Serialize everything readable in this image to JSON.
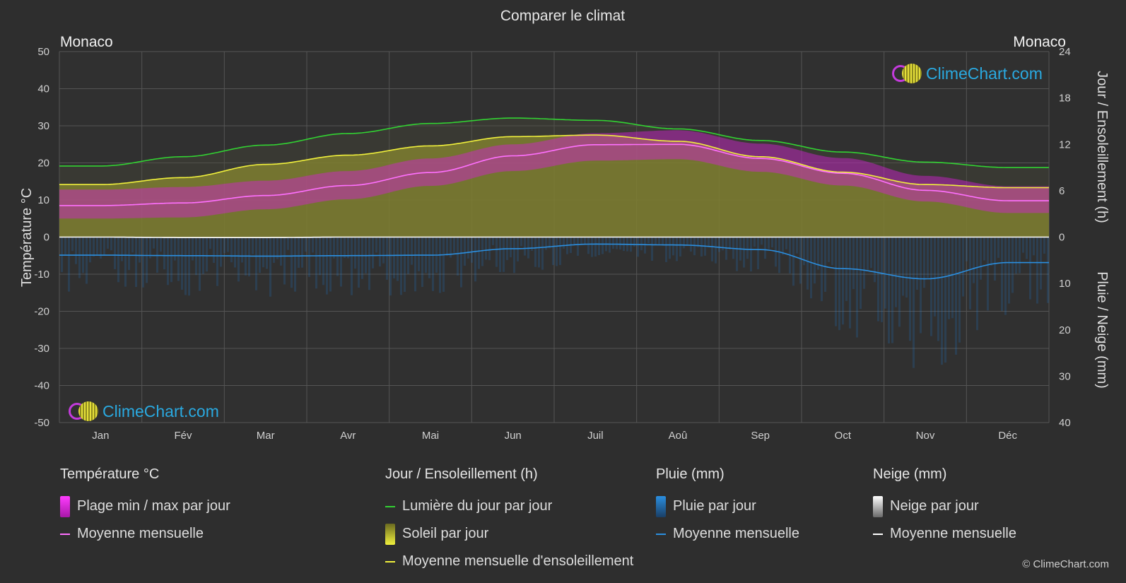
{
  "title": "Comparer le climat",
  "location_left": "Monaco",
  "location_right": "Monaco",
  "axis_left_label": "Température °C",
  "axis_right_top_label": "Jour / Ensoleillement (h)",
  "axis_right_bottom_label": "Pluie / Neige (mm)",
  "brand": "ClimeChart.com",
  "copyright": "© ClimeChart.com",
  "legend": {
    "temperature": {
      "title": "Température °C",
      "range": "Plage min / max par jour",
      "mean": "Moyenne mensuelle"
    },
    "daylight": {
      "title": "Jour / Ensoleillement (h)",
      "daylight": "Lumière du jour par jour",
      "sunshine": "Soleil par jour",
      "sun_mean": "Moyenne mensuelle d'ensoleillement"
    },
    "rain": {
      "title": "Pluie (mm)",
      "per_day": "Pluie par jour",
      "mean": "Moyenne mensuelle"
    },
    "snow": {
      "title": "Neige (mm)",
      "per_day": "Neige par jour",
      "mean": "Moyenne mensuelle"
    }
  },
  "colors": {
    "background": "#2e2e2e",
    "grid": "#555555",
    "temp_range": "#d81fd8",
    "temp_mean": "#ff70ff",
    "daylight": "#32d232",
    "sunshine_fill": "#a8a82a",
    "sun_mean": "#f0f03c",
    "rain": "#1e78c8",
    "rain_mean": "#2b8fe0",
    "snow": "#b4b4b4",
    "snow_mean": "#ffffff"
  },
  "chart_data": {
    "type": "line",
    "categories": [
      "Jan",
      "Fév",
      "Mar",
      "Avr",
      "Mai",
      "Jun",
      "Juil",
      "Aoû",
      "Sep",
      "Oct",
      "Nov",
      "Déc"
    ],
    "left_axis": {
      "label": "Température °C",
      "ylim": [
        -50,
        50
      ],
      "ticks": [
        50,
        40,
        30,
        20,
        10,
        0,
        -10,
        -20,
        -30,
        -40,
        -50
      ]
    },
    "right_axis_top": {
      "label": "Jour / Ensoleillement (h)",
      "ylim": [
        0,
        24
      ],
      "ticks": [
        24,
        18,
        12,
        6,
        0
      ]
    },
    "right_axis_bottom": {
      "label": "Pluie / Neige (mm)",
      "ylim": [
        0,
        40
      ],
      "ticks": [
        0,
        10,
        20,
        30,
        40
      ]
    },
    "grid": true,
    "series": [
      {
        "name": "Lumière du jour par jour",
        "axis": "hours",
        "values": [
          9.2,
          10.4,
          11.9,
          13.4,
          14.7,
          15.4,
          15.1,
          14.0,
          12.5,
          11.0,
          9.7,
          9.0
        ]
      },
      {
        "name": "Moyenne mensuelle d'ensoleillement",
        "axis": "hours",
        "values": [
          6.8,
          7.7,
          9.4,
          10.6,
          11.8,
          13.0,
          13.2,
          12.4,
          10.4,
          8.4,
          6.8,
          6.4
        ]
      },
      {
        "name": "Soleil par jour",
        "axis": "hours",
        "values": [
          6.8,
          7.7,
          9.4,
          10.6,
          11.8,
          13.0,
          13.2,
          12.4,
          10.4,
          8.4,
          6.8,
          6.4
        ]
      },
      {
        "name": "Moyenne mensuelle (température)",
        "axis": "temperature",
        "values": [
          8.5,
          9.2,
          11.2,
          13.9,
          17.4,
          21.9,
          24.9,
          25.0,
          21.2,
          17.2,
          12.6,
          9.8
        ]
      },
      {
        "name": "Plage min / max par jour (min)",
        "axis": "temperature",
        "values": [
          5.0,
          5.3,
          7.5,
          10.2,
          13.8,
          17.8,
          20.6,
          21.0,
          17.6,
          13.9,
          9.6,
          6.5
        ]
      },
      {
        "name": "Plage min / max par jour (max)",
        "axis": "temperature",
        "values": [
          12.8,
          13.5,
          15.2,
          17.8,
          21.2,
          25.0,
          28.0,
          28.8,
          25.2,
          21.3,
          16.5,
          13.7
        ]
      },
      {
        "name": "Moyenne mensuelle (pluie)",
        "axis": "precip",
        "values": [
          3.9,
          4.0,
          4.1,
          4.0,
          3.9,
          2.5,
          1.5,
          1.7,
          2.7,
          6.8,
          9.0,
          5.5
        ]
      },
      {
        "name": "Moyenne mensuelle (neige)",
        "axis": "precip",
        "values": [
          0.0,
          0.1,
          0.1,
          0.0,
          0.0,
          0.0,
          0.0,
          0.0,
          0.0,
          0.0,
          0.0,
          0.0
        ]
      }
    ]
  }
}
